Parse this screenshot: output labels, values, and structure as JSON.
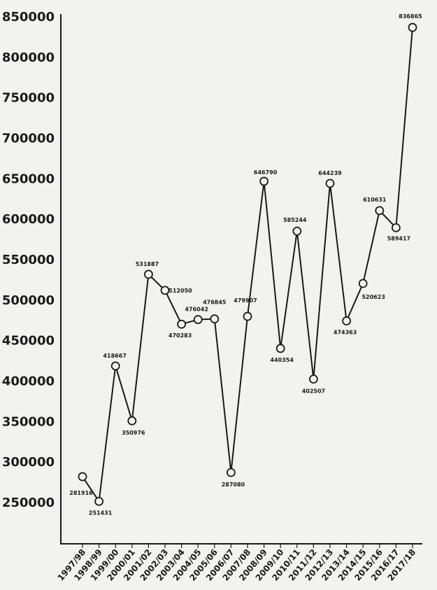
{
  "chart_data": {
    "type": "line",
    "title": "",
    "xlabel": "",
    "ylabel": "",
    "ylim": [
      200000,
      850000
    ],
    "y_ticks": [
      "850000",
      "800000",
      "750000",
      "700000",
      "650000",
      "600000",
      "550000",
      "500000",
      "450000",
      "400000",
      "350000",
      "300000",
      "250000"
    ],
    "grid": false,
    "categories": [
      "1997/98",
      "1998/99",
      "1999/00",
      "2000/01",
      "2001/02",
      "2002/03",
      "2003/04",
      "2004/05",
      "2005/06",
      "2006/07",
      "2007/08",
      "2008/09",
      "2009/10",
      "2010/11",
      "2011/12",
      "2012/13",
      "2013/14",
      "2014/15",
      "2015/16",
      "2016/17",
      "2017/18"
    ],
    "series": [
      {
        "values": [
          281916,
          251431,
          418667,
          350976,
          531887,
          512050,
          470283,
          476042,
          476845,
          287080,
          479907,
          646790,
          440354,
          585244,
          402507,
          644239,
          474363,
          520623,
          610631,
          589417,
          836865
        ],
        "labels": [
          "281916",
          "251431",
          "418667",
          "350976",
          "531887",
          "512050",
          "470283",
          "476042",
          "476845",
          "287080",
          "479907",
          "646790",
          "440354",
          "585244",
          "402507",
          "644239",
          "474363",
          "520623",
          "610631",
          "589417",
          "836865"
        ]
      }
    ],
    "colors": {
      "line": "#1a1a1a",
      "marker_fill": "#f4f4f1",
      "axis": "#1a1a1a"
    }
  }
}
